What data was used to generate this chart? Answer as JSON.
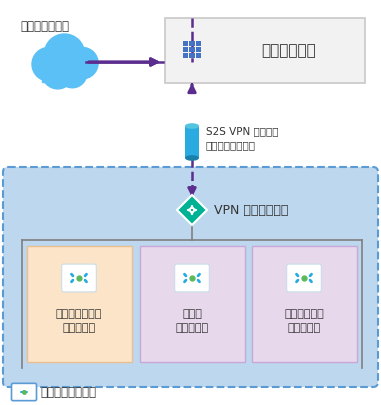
{
  "bg_color": "#ffffff",
  "internet_label": "インターネット",
  "onpremise_label": "オンプレミス",
  "vpn_label": "VPN ゲートウェイ",
  "tunnel_label": "S2S VPN を介した\n強制トンネリング",
  "vnet_label": "仮想ネットワーク",
  "subnet_labels": [
    "フロントエンド\nサブネット",
    "中間層\nサブネット",
    "バックエンド\nサブネット"
  ],
  "subnet_colors": [
    "#fce4c8",
    "#e8d8ec",
    "#e8d8ec"
  ],
  "subnet_border_colors": [
    "#e8c090",
    "#c8a8d8",
    "#c8a8d8"
  ],
  "vnet_bg": "#bdd7ee",
  "vnet_border": "#5b9bd5",
  "onpremise_bg": "#f2f2f2",
  "onpremise_border": "#c8c8c8",
  "arrow_color": "#5b2d8e",
  "tunnel_color_top": "#55c4e0",
  "tunnel_color_mid": "#29abe2",
  "tunnel_color_bot": "#1a7faa",
  "cloud_color_light": "#5bc0f5",
  "cloud_color_dark": "#3a9fd8",
  "diamond_color": "#00b294",
  "diamond_border": "#ffffff",
  "text_color": "#333333",
  "inner_border": "#808080",
  "icon_bg": "#ffffff",
  "icon_border": "#c8dde8",
  "bracket_color": "#29abe2",
  "dot_color": "#5cb85c",
  "vnet_icon_color": "#29abe2",
  "building_color": "#4472c4"
}
